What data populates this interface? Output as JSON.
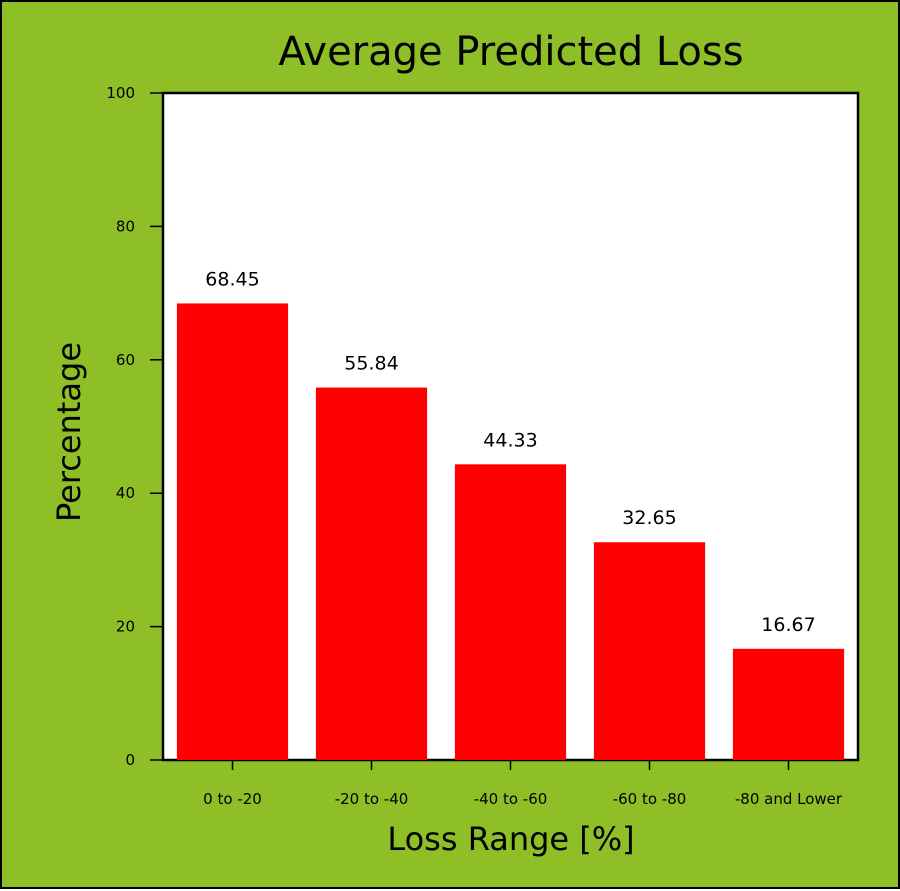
{
  "chart_data": {
    "type": "bar",
    "title": "Average Predicted Loss",
    "xlabel": "Loss Range [%]",
    "ylabel": "Percentage",
    "categories": [
      "0 to -20",
      "-20 to -40",
      "-40 to -60",
      "-60 to -80",
      "-80 and Lower"
    ],
    "values": [
      68.45,
      55.84,
      44.33,
      32.65,
      16.67
    ],
    "data_labels": [
      "68.45",
      "55.84",
      "44.33",
      "32.65",
      "16.67"
    ],
    "ylim": [
      0,
      100
    ],
    "yticks": [
      0,
      20,
      40,
      60,
      80,
      100
    ],
    "grid": false,
    "legend": "none",
    "colors": {
      "bar": "#ff0000",
      "background": "#8ebf26",
      "plot_area": "#ffffff",
      "frame": "#000000"
    }
  }
}
